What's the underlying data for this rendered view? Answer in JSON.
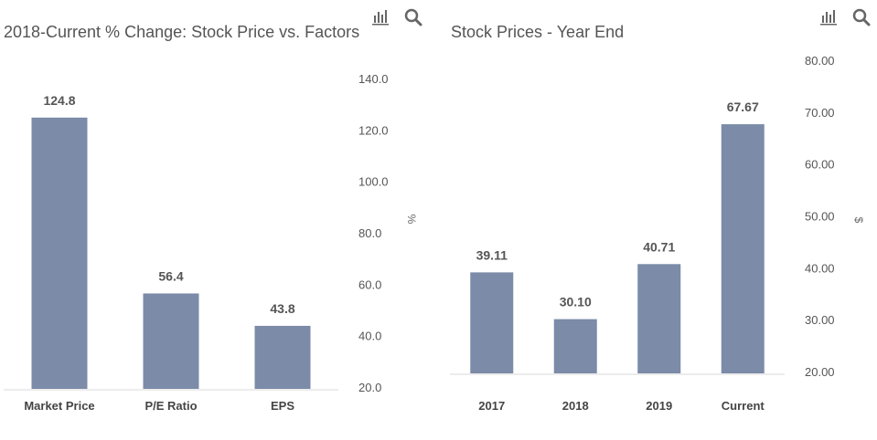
{
  "chart_data": [
    {
      "type": "bar",
      "title": "2018-Current % Change: Stock Price vs. Factors",
      "categories": [
        "Market Price",
        "P/E Ratio",
        "EPS"
      ],
      "values": [
        124.8,
        56.4,
        43.8
      ],
      "data_labels": [
        "124.8",
        "56.4",
        "43.8"
      ],
      "yticks": [
        "20.0",
        "40.0",
        "60.0",
        "80.0",
        "100.0",
        "120.0",
        "140.0"
      ],
      "ylim": [
        20,
        140
      ],
      "ylabel": "%",
      "yaxis_side": "right",
      "bar_color": "#7b8ba8",
      "grid": false,
      "legend": "none"
    },
    {
      "type": "bar",
      "title": "Stock Prices - Year End",
      "categories": [
        "2017",
        "2018",
        "2019",
        "Current"
      ],
      "values": [
        39.11,
        30.1,
        40.71,
        67.67
      ],
      "data_labels": [
        "39.11",
        "30.10",
        "40.71",
        "67.67"
      ],
      "yticks": [
        "20.00",
        "30.00",
        "40.00",
        "50.00",
        "60.00",
        "70.00",
        "80.00"
      ],
      "ylim": [
        20,
        80
      ],
      "ylabel": "$",
      "yaxis_side": "right",
      "bar_color": "#7b8ba8",
      "grid": false,
      "legend": "none"
    }
  ],
  "toolbar": {
    "icons": [
      "bar-chart-icon",
      "search-icon"
    ],
    "icon_color": "#666666"
  }
}
